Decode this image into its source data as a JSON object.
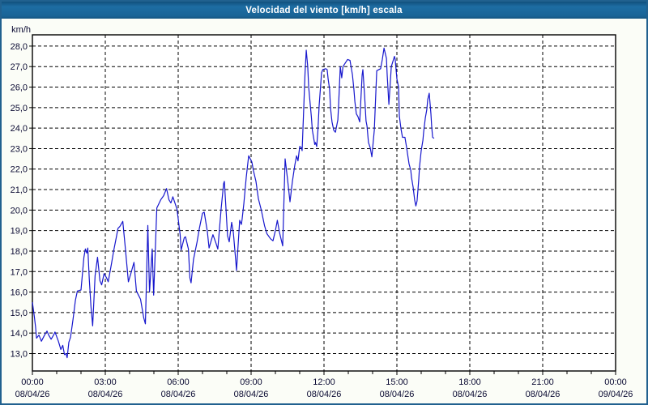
{
  "window": {
    "title": "Velocidad del viento [km/h] escala",
    "title_bar_color": "#1a6496",
    "border_color": "#21618f",
    "background_color": "#fbfdf7",
    "plot_background_color": "#ffffff"
  },
  "chart_data": {
    "type": "line",
    "title": "Velocidad del viento [km/h] escala",
    "ylabel": "km/h",
    "xlabel": "",
    "grid": "dashed",
    "legend": "none",
    "line_color": "#1717cd",
    "grid_color": "#000000",
    "label_color": "#0a0a32",
    "axis": {
      "y_top": 28.55,
      "y_bottom": 12.15,
      "x_left_hour": 0,
      "x_right_hour": 24
    },
    "y_ticks": [
      {
        "value": 28,
        "label": "28,0"
      },
      {
        "value": 27,
        "label": "27,0"
      },
      {
        "value": 26,
        "label": "26,0"
      },
      {
        "value": 25,
        "label": "25,0"
      },
      {
        "value": 24,
        "label": "24,0"
      },
      {
        "value": 23,
        "label": "23,0"
      },
      {
        "value": 22,
        "label": "22,0"
      },
      {
        "value": 21,
        "label": "21,0"
      },
      {
        "value": 20,
        "label": "20,0"
      },
      {
        "value": 19,
        "label": "19,0"
      },
      {
        "value": 18,
        "label": "18,0"
      },
      {
        "value": 17,
        "label": "17,0"
      },
      {
        "value": 16,
        "label": "16,0"
      },
      {
        "value": 15,
        "label": "15,0"
      },
      {
        "value": 14,
        "label": "14,0"
      },
      {
        "value": 13,
        "label": "13,0"
      }
    ],
    "x_ticks": [
      {
        "hour": 0,
        "time": "00:00",
        "date": "08/04/26"
      },
      {
        "hour": 3,
        "time": "03:00",
        "date": "08/04/26"
      },
      {
        "hour": 6,
        "time": "06:00",
        "date": "08/04/26"
      },
      {
        "hour": 9,
        "time": "09:00",
        "date": "08/04/26"
      },
      {
        "hour": 12,
        "time": "12:00",
        "date": "08/04/26"
      },
      {
        "hour": 15,
        "time": "15:00",
        "date": "08/04/26"
      },
      {
        "hour": 18,
        "time": "18:00",
        "date": "08/04/26"
      },
      {
        "hour": 21,
        "time": "21:00",
        "date": "08/04/26"
      },
      {
        "hour": 24,
        "time": "00:00",
        "date": "09/04/26"
      }
    ],
    "x_minor_tick_every_hours": 1,
    "v_gridline_hours": [
      3,
      6,
      9,
      12,
      15,
      18,
      21
    ],
    "series": [
      {
        "name": "Velocidad del viento",
        "unit": "km/h",
        "points": [
          [
            0.0,
            15.5
          ],
          [
            0.08,
            14.8
          ],
          [
            0.13,
            14.3
          ],
          [
            0.17,
            13.75
          ],
          [
            0.27,
            13.9
          ],
          [
            0.37,
            13.6
          ],
          [
            0.5,
            13.9
          ],
          [
            0.6,
            14.1
          ],
          [
            0.67,
            13.9
          ],
          [
            0.77,
            13.7
          ],
          [
            0.87,
            13.9
          ],
          [
            0.93,
            14.05
          ],
          [
            1.07,
            13.6
          ],
          [
            1.17,
            13.2
          ],
          [
            1.25,
            13.4
          ],
          [
            1.32,
            12.95
          ],
          [
            1.38,
            13.0
          ],
          [
            1.43,
            12.8
          ],
          [
            1.5,
            13.55
          ],
          [
            1.57,
            13.8
          ],
          [
            1.67,
            14.65
          ],
          [
            1.77,
            15.6
          ],
          [
            1.85,
            16.05
          ],
          [
            2.0,
            16.1
          ],
          [
            2.12,
            17.7
          ],
          [
            2.18,
            18.1
          ],
          [
            2.24,
            17.9
          ],
          [
            2.28,
            18.15
          ],
          [
            2.34,
            16.65
          ],
          [
            2.41,
            15.3
          ],
          [
            2.48,
            14.35
          ],
          [
            2.58,
            16.8
          ],
          [
            2.68,
            17.7
          ],
          [
            2.78,
            16.55
          ],
          [
            2.85,
            16.35
          ],
          [
            2.95,
            16.9
          ],
          [
            3.05,
            16.7
          ],
          [
            3.12,
            16.5
          ],
          [
            3.25,
            17.35
          ],
          [
            3.35,
            18.05
          ],
          [
            3.45,
            18.65
          ],
          [
            3.52,
            19.1
          ],
          [
            3.6,
            19.2
          ],
          [
            3.72,
            19.45
          ],
          [
            3.82,
            18.2
          ],
          [
            3.95,
            16.5
          ],
          [
            4.05,
            16.9
          ],
          [
            4.18,
            17.45
          ],
          [
            4.28,
            16.05
          ],
          [
            4.45,
            15.65
          ],
          [
            4.58,
            14.75
          ],
          [
            4.65,
            14.45
          ],
          [
            4.75,
            19.25
          ],
          [
            4.82,
            16.0
          ],
          [
            4.93,
            18.1
          ],
          [
            4.99,
            15.85
          ],
          [
            5.12,
            20.1
          ],
          [
            5.28,
            20.5
          ],
          [
            5.4,
            20.7
          ],
          [
            5.52,
            21.05
          ],
          [
            5.62,
            20.5
          ],
          [
            5.7,
            20.35
          ],
          [
            5.78,
            20.65
          ],
          [
            5.95,
            20.05
          ],
          [
            6.08,
            18.8
          ],
          [
            6.12,
            18.05
          ],
          [
            6.25,
            18.65
          ],
          [
            6.3,
            18.7
          ],
          [
            6.42,
            18.1
          ],
          [
            6.48,
            16.7
          ],
          [
            6.53,
            16.45
          ],
          [
            6.63,
            17.6
          ],
          [
            6.77,
            18.4
          ],
          [
            6.87,
            19.1
          ],
          [
            7.0,
            19.85
          ],
          [
            7.07,
            19.9
          ],
          [
            7.2,
            18.95
          ],
          [
            7.27,
            18.15
          ],
          [
            7.43,
            18.8
          ],
          [
            7.55,
            18.4
          ],
          [
            7.63,
            18.1
          ],
          [
            7.77,
            20.1
          ],
          [
            7.87,
            21.3
          ],
          [
            7.9,
            21.4
          ],
          [
            7.97,
            20.0
          ],
          [
            8.03,
            18.75
          ],
          [
            8.1,
            18.45
          ],
          [
            8.2,
            19.4
          ],
          [
            8.27,
            18.9
          ],
          [
            8.37,
            17.5
          ],
          [
            8.4,
            17.05
          ],
          [
            8.53,
            19.5
          ],
          [
            8.6,
            19.3
          ],
          [
            8.63,
            19.55
          ],
          [
            8.7,
            20.3
          ],
          [
            8.8,
            21.6
          ],
          [
            8.9,
            22.65
          ],
          [
            9.03,
            22.35
          ],
          [
            9.1,
            21.9
          ],
          [
            9.2,
            21.4
          ],
          [
            9.3,
            20.55
          ],
          [
            9.42,
            20.0
          ],
          [
            9.55,
            19.25
          ],
          [
            9.65,
            18.85
          ],
          [
            9.8,
            18.6
          ],
          [
            9.9,
            18.5
          ],
          [
            10.0,
            19.0
          ],
          [
            10.08,
            19.5
          ],
          [
            10.17,
            18.9
          ],
          [
            10.3,
            18.25
          ],
          [
            10.4,
            22.5
          ],
          [
            10.5,
            21.5
          ],
          [
            10.6,
            20.4
          ],
          [
            10.7,
            21.4
          ],
          [
            10.8,
            22.2
          ],
          [
            10.87,
            22.65
          ],
          [
            10.93,
            22.4
          ],
          [
            11.0,
            23.1
          ],
          [
            11.07,
            23.05
          ],
          [
            11.1,
            22.9
          ],
          [
            11.17,
            25.1
          ],
          [
            11.22,
            26.7
          ],
          [
            11.27,
            27.8
          ],
          [
            11.33,
            27.0
          ],
          [
            11.37,
            26.0
          ],
          [
            11.43,
            25.2
          ],
          [
            11.48,
            24.55
          ],
          [
            11.52,
            23.9
          ],
          [
            11.57,
            23.55
          ],
          [
            11.62,
            23.2
          ],
          [
            11.65,
            23.3
          ],
          [
            11.7,
            23.1
          ],
          [
            11.75,
            23.9
          ],
          [
            11.8,
            25.1
          ],
          [
            11.85,
            25.9
          ],
          [
            11.9,
            26.7
          ],
          [
            11.95,
            26.85
          ],
          [
            12.07,
            26.9
          ],
          [
            12.13,
            26.85
          ],
          [
            12.17,
            26.4
          ],
          [
            12.23,
            25.9
          ],
          [
            12.27,
            24.95
          ],
          [
            12.33,
            24.3
          ],
          [
            12.4,
            23.9
          ],
          [
            12.47,
            23.8
          ],
          [
            12.57,
            24.4
          ],
          [
            12.6,
            25.1
          ],
          [
            12.67,
            27.0
          ],
          [
            12.73,
            26.45
          ],
          [
            12.78,
            27.0
          ],
          [
            12.97,
            27.35
          ],
          [
            13.07,
            27.3
          ],
          [
            13.17,
            26.6
          ],
          [
            13.23,
            25.9
          ],
          [
            13.27,
            25.3
          ],
          [
            13.33,
            24.7
          ],
          [
            13.4,
            24.55
          ],
          [
            13.47,
            24.3
          ],
          [
            13.57,
            26.6
          ],
          [
            13.6,
            26.85
          ],
          [
            13.67,
            25.6
          ],
          [
            13.73,
            24.35
          ],
          [
            13.77,
            24.1
          ],
          [
            13.83,
            23.3
          ],
          [
            13.9,
            23.05
          ],
          [
            13.97,
            22.6
          ],
          [
            14.07,
            23.9
          ],
          [
            14.17,
            26.8
          ],
          [
            14.33,
            26.9
          ],
          [
            14.4,
            27.35
          ],
          [
            14.47,
            27.9
          ],
          [
            14.57,
            27.4
          ],
          [
            14.6,
            26.6
          ],
          [
            14.67,
            25.15
          ],
          [
            14.77,
            27.0
          ],
          [
            14.9,
            27.5
          ],
          [
            14.93,
            27.35
          ],
          [
            15.0,
            26.4
          ],
          [
            15.07,
            26.0
          ],
          [
            15.1,
            24.6
          ],
          [
            15.17,
            23.95
          ],
          [
            15.23,
            23.55
          ],
          [
            15.33,
            23.55
          ],
          [
            15.4,
            23.05
          ],
          [
            15.5,
            22.25
          ],
          [
            15.57,
            21.95
          ],
          [
            15.6,
            21.6
          ],
          [
            15.67,
            21.1
          ],
          [
            15.73,
            20.5
          ],
          [
            15.78,
            20.2
          ],
          [
            15.83,
            20.45
          ],
          [
            15.9,
            21.5
          ],
          [
            15.93,
            22.1
          ],
          [
            16.0,
            22.9
          ],
          [
            16.07,
            23.4
          ],
          [
            16.1,
            23.8
          ],
          [
            16.17,
            24.5
          ],
          [
            16.23,
            24.9
          ],
          [
            16.27,
            25.4
          ],
          [
            16.33,
            25.7
          ],
          [
            16.4,
            24.7
          ],
          [
            16.43,
            24.1
          ],
          [
            16.47,
            23.55
          ],
          [
            16.53,
            23.5
          ]
        ]
      }
    ]
  }
}
